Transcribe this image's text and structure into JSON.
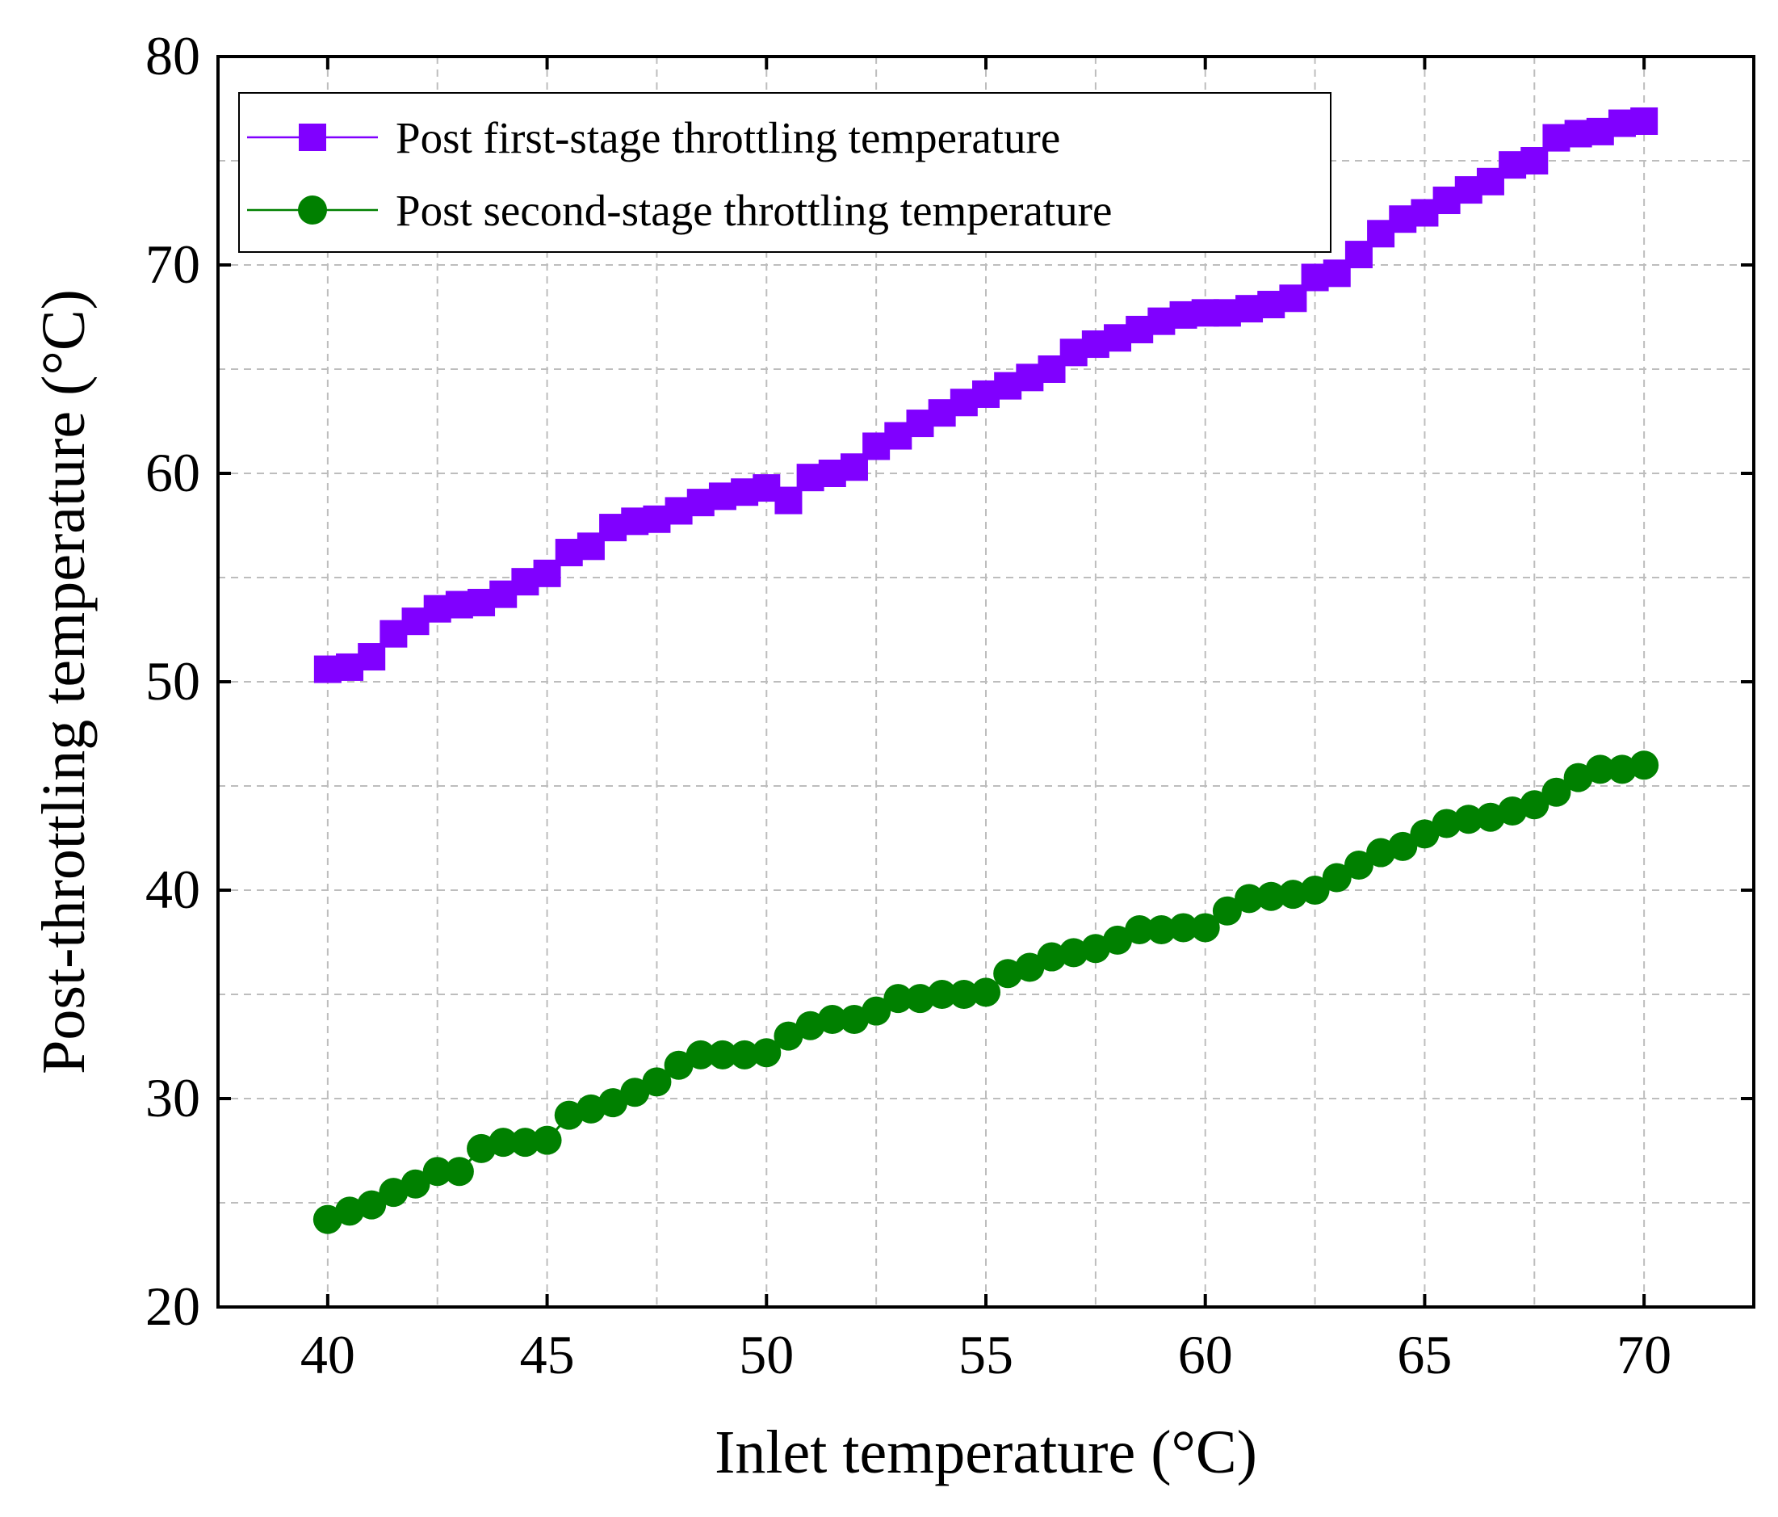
{
  "chart_data": {
    "type": "line",
    "title": "",
    "xlabel": "Inlet temperature (°C)",
    "ylabel": "Post-throttling temperature (°C)",
    "xlim": [
      37.5,
      72.5
    ],
    "ylim": [
      20,
      80
    ],
    "xticks": [
      40,
      45,
      50,
      55,
      60,
      65,
      70
    ],
    "yticks": [
      20,
      30,
      40,
      50,
      60,
      70,
      80
    ],
    "xtick_labels": [
      "40",
      "45",
      "50",
      "55",
      "60",
      "65",
      "70"
    ],
    "ytick_labels": [
      "20",
      "30",
      "40",
      "50",
      "60",
      "70",
      "80"
    ],
    "grid": true,
    "legend_position": "top-left",
    "x": [
      40,
      40.5,
      41,
      41.5,
      42,
      42.5,
      43,
      43.5,
      44,
      44.5,
      45,
      45.5,
      46,
      46.5,
      47,
      47.5,
      48,
      48.5,
      49,
      49.5,
      50,
      50.5,
      51,
      51.5,
      52,
      52.5,
      53,
      53.5,
      54,
      54.5,
      55,
      55.5,
      56,
      56.5,
      57,
      57.5,
      58,
      58.5,
      59,
      59.5,
      60,
      60.5,
      61,
      61.5,
      62,
      62.5,
      63,
      63.5,
      64,
      64.5,
      65,
      65.5,
      66,
      66.5,
      67,
      67.5,
      68,
      68.5,
      69,
      69.5,
      70
    ],
    "series": [
      {
        "name": "Post first-stage throttling temperature",
        "color": "#8000ff",
        "marker": "square",
        "values": [
          50.6,
          50.7,
          51.2,
          52.3,
          52.9,
          53.5,
          53.7,
          53.8,
          54.2,
          54.8,
          55.2,
          56.2,
          56.5,
          57.4,
          57.7,
          57.8,
          58.2,
          58.6,
          58.9,
          59.1,
          59.3,
          58.7,
          59.8,
          60.0,
          60.3,
          61.3,
          61.8,
          62.4,
          62.9,
          63.4,
          63.8,
          64.2,
          64.6,
          65.0,
          65.8,
          66.2,
          66.5,
          66.9,
          67.3,
          67.6,
          67.7,
          67.7,
          67.9,
          68.1,
          68.4,
          69.4,
          69.6,
          70.5,
          71.5,
          72.2,
          72.5,
          73.1,
          73.6,
          74.0,
          74.8,
          75.0,
          76.1,
          76.3,
          76.4,
          76.8,
          76.9
        ]
      },
      {
        "name": "Post second-stage throttling temperature",
        "color": "#008000",
        "marker": "circle",
        "values": [
          24.2,
          24.6,
          24.9,
          25.5,
          25.9,
          26.5,
          26.5,
          27.6,
          27.9,
          27.9,
          28.0,
          29.2,
          29.5,
          29.8,
          30.3,
          30.8,
          31.6,
          32.1,
          32.1,
          32.1,
          32.2,
          33.0,
          33.5,
          33.8,
          33.8,
          34.2,
          34.8,
          34.8,
          35.0,
          35.0,
          35.1,
          36.0,
          36.3,
          36.8,
          37.0,
          37.2,
          37.6,
          38.1,
          38.1,
          38.2,
          38.2,
          39.0,
          39.6,
          39.7,
          39.8,
          40.0,
          40.6,
          41.2,
          41.8,
          42.1,
          42.7,
          43.2,
          43.4,
          43.5,
          43.8,
          44.1,
          44.7,
          45.4,
          45.8,
          45.8,
          46.0
        ]
      }
    ]
  }
}
